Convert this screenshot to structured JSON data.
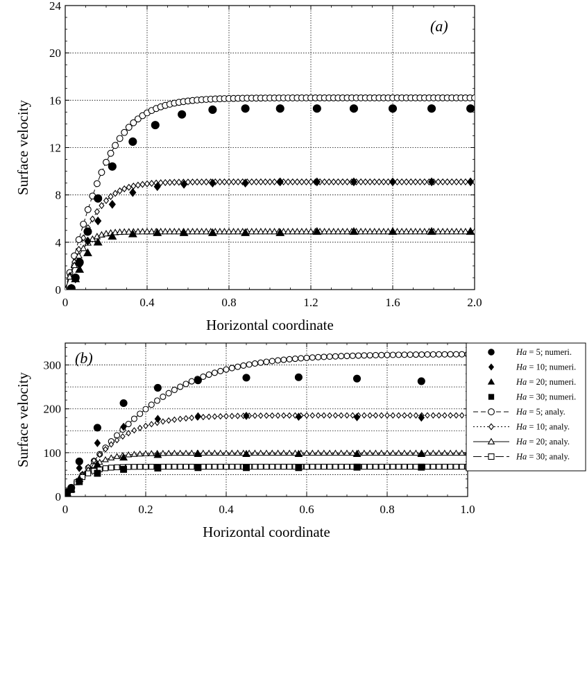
{
  "chart_data": [
    {
      "type": "scatter",
      "panel_label": "(a)",
      "xlabel": "Horizontal coordinate",
      "ylabel": "Surface velocity",
      "xlim": [
        0,
        2.0
      ],
      "ylim": [
        0,
        24
      ],
      "x_ticks": [
        "0",
        "0.4",
        "0.8",
        "1.2",
        "1.6",
        "2.0"
      ],
      "y_ticks": [
        "0",
        "4",
        "8",
        "12",
        "16",
        "20",
        "24"
      ],
      "grid": true,
      "series": [
        {
          "marker": "filled-circle",
          "kind": "numeric",
          "x": [
            0.03,
            0.05,
            0.07,
            0.11,
            0.16,
            0.23,
            0.33,
            0.44,
            0.57,
            0.72,
            0.88,
            1.05,
            1.23,
            1.41,
            1.6,
            1.79,
            1.98
          ],
          "y": [
            0.1,
            1.0,
            2.3,
            4.9,
            7.7,
            10.4,
            12.5,
            13.9,
            14.8,
            15.2,
            15.3,
            15.3,
            15.3,
            15.3,
            15.3,
            15.3,
            15.3
          ]
        },
        {
          "marker": "filled-diamond",
          "kind": "numeric",
          "x": [
            0.03,
            0.05,
            0.07,
            0.11,
            0.16,
            0.23,
            0.33,
            0.45,
            0.58,
            0.72,
            0.88,
            1.05,
            1.23,
            1.41,
            1.6,
            1.79,
            1.98
          ],
          "y": [
            0.1,
            0.9,
            2.1,
            4.1,
            5.8,
            7.2,
            8.2,
            8.7,
            8.9,
            9.0,
            9.0,
            9.1,
            9.1,
            9.1,
            9.1,
            9.1,
            9.1
          ]
        },
        {
          "marker": "filled-triangle",
          "kind": "numeric",
          "x": [
            0.03,
            0.05,
            0.07,
            0.11,
            0.16,
            0.23,
            0.33,
            0.45,
            0.58,
            0.72,
            0.88,
            1.05,
            1.23,
            1.41,
            1.6,
            1.79,
            1.98
          ],
          "y": [
            0.1,
            0.9,
            1.7,
            3.1,
            4.0,
            4.5,
            4.7,
            4.8,
            4.8,
            4.8,
            4.8,
            4.8,
            4.9,
            4.9,
            4.9,
            4.9,
            4.9
          ]
        },
        {
          "marker": "open-circle",
          "kind": "analytic",
          "line": "dashed",
          "asymptote": 16.2,
          "scale": 0.25
        },
        {
          "marker": "open-diamond",
          "kind": "analytic",
          "line": "dash-dot",
          "asymptote": 9.1,
          "scale": 0.17
        },
        {
          "marker": "open-triangle",
          "kind": "analytic",
          "line": "solid",
          "asymptote": 4.9,
          "scale": 0.1
        }
      ]
    },
    {
      "type": "scatter",
      "panel_label": "(b)",
      "xlabel": "Horizontal coordinate",
      "ylabel": "Surface velocity",
      "xlim": [
        0,
        1.0
      ],
      "ylim": [
        0,
        350
      ],
      "x_ticks": [
        "0",
        "0.2",
        "0.4",
        "0.6",
        "0.8",
        "1.0"
      ],
      "y_ticks": [
        "0",
        "100",
        "200",
        "300"
      ],
      "grid": true,
      "legend_placement": "top-right",
      "legend": [
        {
          "ha": "Ha",
          "rest": " = 5; numeri.",
          "marker": "filled-circle",
          "line": "none"
        },
        {
          "ha": "Ha",
          "rest": " = 10; numeri.",
          "marker": "filled-diamond",
          "line": "none"
        },
        {
          "ha": "Ha",
          "rest": " = 20; numeri.",
          "marker": "filled-triangle",
          "line": "none"
        },
        {
          "ha": "Ha",
          "rest": " = 30; numeri.",
          "marker": "filled-square",
          "line": "none"
        },
        {
          "ha": "Ha",
          "rest": " = 5; analy.",
          "marker": "open-circle",
          "line": "dashed"
        },
        {
          "ha": "Ha",
          "rest": " = 10; analy.",
          "marker": "open-diamond",
          "line": "dotted"
        },
        {
          "ha": "Ha",
          "rest": " = 20; analy.",
          "marker": "open-triangle",
          "line": "solid"
        },
        {
          "ha": "Ha",
          "rest": " = 30; analy.",
          "marker": "open-square",
          "line": "long-dash"
        }
      ],
      "series": [
        {
          "marker": "filled-circle",
          "kind": "numeric",
          "x": [
            0.0,
            0.005,
            0.015,
            0.035,
            0.08,
            0.145,
            0.23,
            0.33,
            0.45,
            0.58,
            0.725,
            0.885
          ],
          "y": [
            0,
            10,
            20,
            80,
            157,
            213,
            248,
            265,
            271,
            272,
            269,
            263
          ]
        },
        {
          "marker": "filled-diamond",
          "kind": "numeric",
          "x": [
            0.0,
            0.005,
            0.015,
            0.035,
            0.08,
            0.145,
            0.23,
            0.33,
            0.45,
            0.58,
            0.725,
            0.885
          ],
          "y": [
            0,
            8,
            18,
            65,
            122,
            159,
            177,
            183,
            184,
            182,
            181,
            180
          ]
        },
        {
          "marker": "filled-triangle",
          "kind": "numeric",
          "x": [
            0.0,
            0.005,
            0.015,
            0.035,
            0.08,
            0.145,
            0.23,
            0.33,
            0.45,
            0.58,
            0.725,
            0.885
          ],
          "y": [
            0,
            8,
            17,
            40,
            73,
            89,
            95,
            97,
            97,
            97,
            97,
            97
          ]
        },
        {
          "marker": "filled-square",
          "kind": "numeric",
          "x": [
            0.0,
            0.005,
            0.015,
            0.035,
            0.08,
            0.145,
            0.23,
            0.33,
            0.45,
            0.58,
            0.725,
            0.885
          ],
          "y": [
            0,
            8,
            16,
            34,
            53,
            62,
            65,
            66,
            66,
            66,
            67,
            67
          ]
        },
        {
          "marker": "open-circle",
          "kind": "analytic",
          "line": "dashed",
          "asymptote": 325,
          "scale": 0.28
        },
        {
          "marker": "open-diamond",
          "kind": "analytic",
          "line": "dotted",
          "asymptote": 185,
          "scale": 0.15
        },
        {
          "marker": "open-triangle",
          "kind": "analytic",
          "line": "solid",
          "asymptote": 99,
          "scale": 0.08
        },
        {
          "marker": "open-square",
          "kind": "analytic",
          "line": "long-dash",
          "asymptote": 68,
          "scale": 0.055
        }
      ]
    }
  ]
}
